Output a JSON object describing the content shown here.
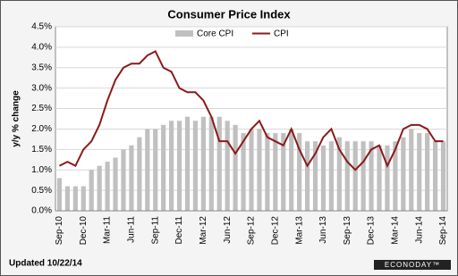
{
  "chart_data": {
    "type": "bar-line",
    "title": "Consumer Price Index",
    "y_label": "y/y % change",
    "footnote": "Updated 10/22/14",
    "logo": "ECONODAY™",
    "categories": [
      "Sep-10",
      null,
      null,
      "Dec-10",
      null,
      null,
      "Mar-11",
      null,
      null,
      "Jun-11",
      null,
      null,
      "Sep-11",
      null,
      null,
      "Dec-11",
      null,
      null,
      "Mar-12",
      null,
      null,
      "Jun-12",
      null,
      null,
      "Sep-12",
      null,
      null,
      "Dec-12",
      null,
      null,
      "Mar-13",
      null,
      null,
      "Jun-13",
      null,
      null,
      "Sep-13",
      null,
      null,
      "Dec-13",
      null,
      null,
      "Mar-14",
      null,
      null,
      "Jun-14",
      null,
      null,
      "Sep-14"
    ],
    "series": [
      {
        "name": "Core CPI",
        "kind": "bar",
        "color": "#c0c0c0",
        "values": [
          0.8,
          0.6,
          0.6,
          0.6,
          1.0,
          1.1,
          1.2,
          1.3,
          1.5,
          1.6,
          1.8,
          2.0,
          2.0,
          2.1,
          2.2,
          2.2,
          2.3,
          2.2,
          2.3,
          2.3,
          2.3,
          2.2,
          2.1,
          1.9,
          2.0,
          2.0,
          1.9,
          1.9,
          1.9,
          2.0,
          1.9,
          1.7,
          1.7,
          1.6,
          1.7,
          1.8,
          1.7,
          1.7,
          1.7,
          1.7,
          1.6,
          1.6,
          1.7,
          1.8,
          2.0,
          1.9,
          1.9,
          1.7,
          1.7
        ]
      },
      {
        "name": "CPI",
        "kind": "line",
        "color": "#8b1a1a",
        "values": [
          1.1,
          1.2,
          1.1,
          1.5,
          1.7,
          2.1,
          2.7,
          3.2,
          3.5,
          3.6,
          3.6,
          3.8,
          3.9,
          3.5,
          3.4,
          3.0,
          2.9,
          2.9,
          2.7,
          2.3,
          1.7,
          1.7,
          1.4,
          1.7,
          2.0,
          2.2,
          1.8,
          1.7,
          1.6,
          2.0,
          1.5,
          1.1,
          1.4,
          1.8,
          2.0,
          1.5,
          1.2,
          1.0,
          1.2,
          1.5,
          1.6,
          1.1,
          1.5,
          2.0,
          2.1,
          2.1,
          2.0,
          1.7,
          1.7
        ]
      }
    ],
    "ylim": [
      0,
      4.5
    ],
    "yticks": [
      {
        "value": 0,
        "label": "0.0%"
      },
      {
        "value": 0.5,
        "label": "0.5%"
      },
      {
        "value": 1,
        "label": "1.0%"
      },
      {
        "value": 1.5,
        "label": "1.5%"
      },
      {
        "value": 2,
        "label": "2.0%"
      },
      {
        "value": 2.5,
        "label": "2.5%"
      },
      {
        "value": 3,
        "label": "3.0%"
      },
      {
        "value": 3.5,
        "label": "3.5%"
      },
      {
        "value": 4,
        "label": "4.0%"
      },
      {
        "value": 4.5,
        "label": "4.5%"
      }
    ],
    "grid": true
  }
}
